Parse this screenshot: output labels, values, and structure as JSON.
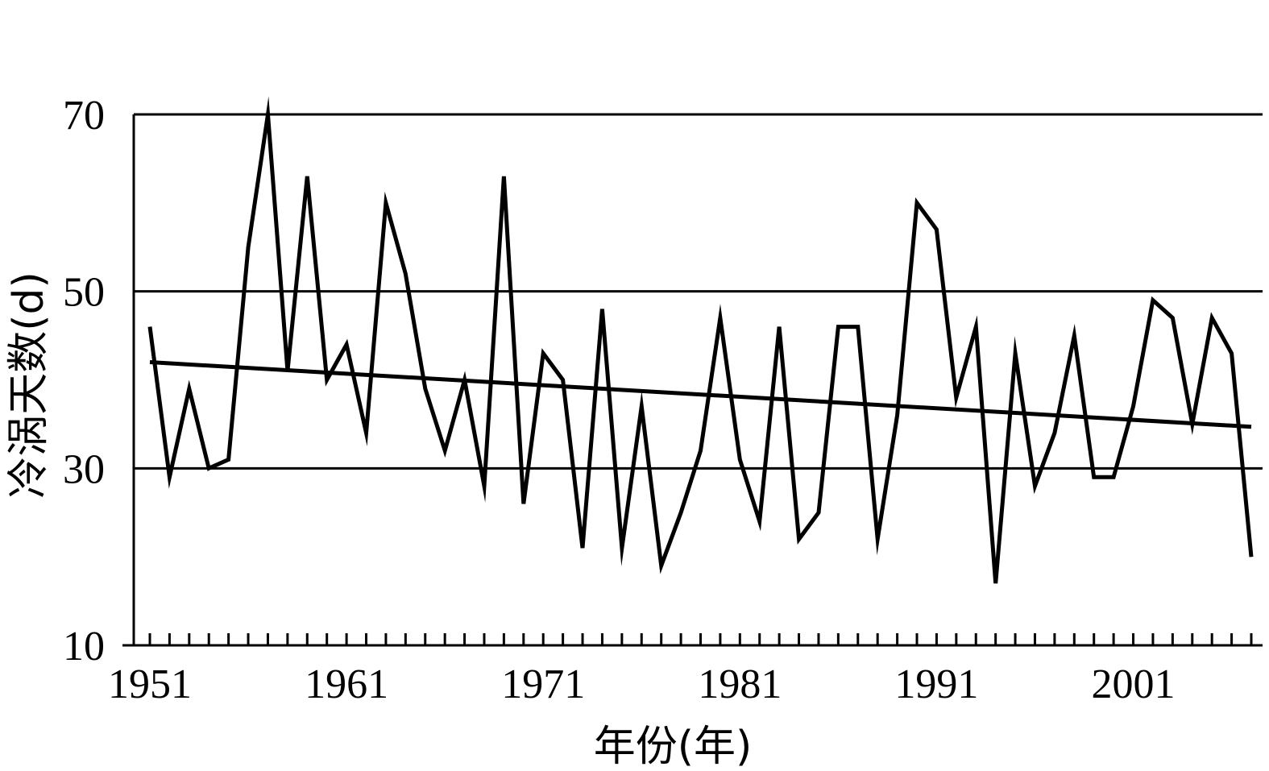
{
  "chart_data": {
    "type": "line",
    "xlabel": "年份(年)",
    "ylabel": "冷涡天数(d)",
    "ylim": [
      10,
      70
    ],
    "xlim": [
      1951,
      2007
    ],
    "yticks": [
      10,
      30,
      50,
      70
    ],
    "y_gridlines": [
      30,
      50,
      70
    ],
    "xtick_labels": [
      "1951",
      "1961",
      "1971",
      "1981",
      "1991",
      "2001"
    ],
    "grid": "horizontal",
    "x": [
      1951,
      1952,
      1953,
      1954,
      1955,
      1956,
      1957,
      1958,
      1959,
      1960,
      1961,
      1962,
      1963,
      1964,
      1965,
      1966,
      1967,
      1968,
      1969,
      1970,
      1971,
      1972,
      1973,
      1974,
      1975,
      1976,
      1977,
      1978,
      1979,
      1980,
      1981,
      1982,
      1983,
      1984,
      1985,
      1986,
      1987,
      1988,
      1989,
      1990,
      1991,
      1992,
      1993,
      1994,
      1995,
      1996,
      1997,
      1998,
      1999,
      2000,
      2001,
      2002,
      2003,
      2004,
      2005,
      2006,
      2007
    ],
    "series": [
      {
        "values": [
          46,
          29,
          39,
          30,
          31,
          55,
          70,
          41,
          63,
          40,
          44,
          34,
          60,
          52,
          39,
          32,
          40,
          28,
          63,
          26,
          43,
          40,
          21,
          48,
          21,
          37,
          19,
          25,
          32,
          47,
          31,
          24,
          46,
          22,
          25,
          46,
          46,
          22,
          36,
          60,
          57,
          38,
          46,
          17,
          43,
          28,
          34,
          45,
          29,
          29,
          37,
          49,
          47,
          35,
          47,
          43,
          20
        ],
        "color": "#000000"
      },
      {
        "type": "trend",
        "x": [
          1951,
          2007
        ],
        "values": [
          42.0,
          34.7
        ],
        "color": "#000000"
      }
    ]
  }
}
